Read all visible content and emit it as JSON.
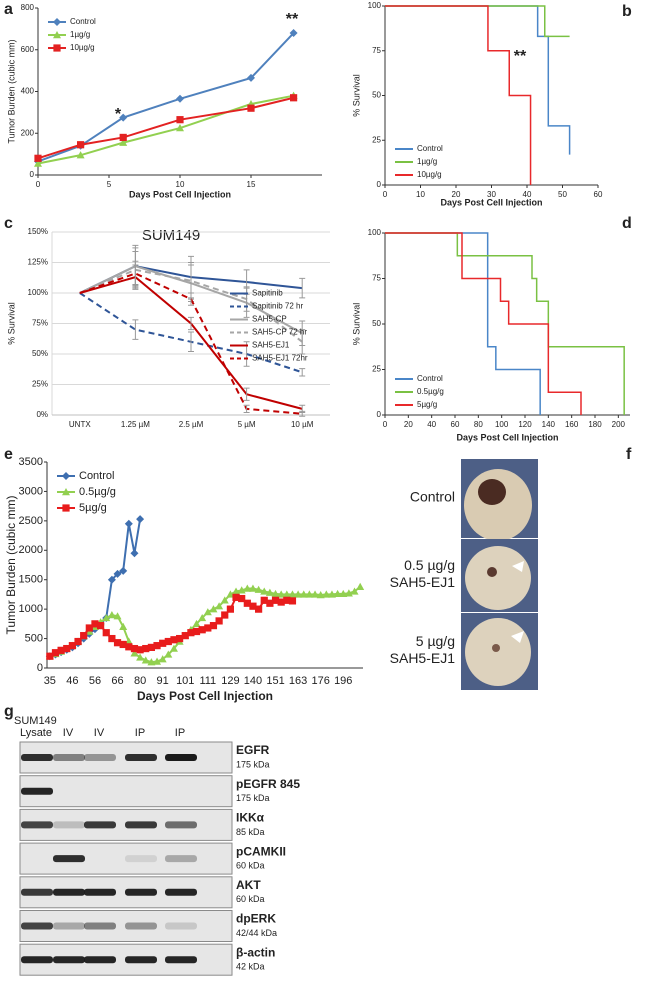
{
  "chart_data": [
    {
      "panel": "a",
      "type": "line",
      "xlabel": "Days Post Cell Injection",
      "ylabel": "Tumor Burden (cubic mm)",
      "x": [
        0,
        3,
        6,
        10,
        15,
        18
      ],
      "xlim": [
        0,
        20
      ],
      "xticks": [
        0,
        5,
        10,
        15
      ],
      "ylim": [
        0,
        800
      ],
      "yticks": [
        0,
        200,
        400,
        600,
        800
      ],
      "grid": false,
      "legend": "top-left",
      "series": [
        {
          "name": "Control",
          "color": "#4f81bd",
          "marker": "diamond",
          "values": [
            65,
            140,
            275,
            365,
            465,
            680
          ]
        },
        {
          "name": "1µg/g",
          "color": "#92d050",
          "marker": "triangle",
          "values": [
            55,
            95,
            155,
            225,
            340,
            380
          ]
        },
        {
          "name": "10µg/g",
          "color": "#e32222",
          "marker": "square",
          "values": [
            80,
            145,
            180,
            265,
            320,
            370
          ]
        }
      ],
      "annotations": [
        {
          "text": "*",
          "color": "#222"
        },
        {
          "text": "**",
          "color": "#222"
        }
      ]
    },
    {
      "panel": "b",
      "type": "step",
      "xlabel": "Days Post Cell Injection",
      "ylabel": "% Survival",
      "xlim": [
        0,
        60
      ],
      "xticks": [
        0,
        10,
        20,
        30,
        40,
        50,
        60
      ],
      "ylim": [
        0,
        100
      ],
      "yticks": [
        0,
        25,
        50,
        75,
        100
      ],
      "grid": false,
      "legend": "bottom-left",
      "series": [
        {
          "name": "Control",
          "color": "#4a86c8",
          "x": [
            0,
            43,
            46,
            52
          ],
          "values": [
            100,
            83,
            33,
            17
          ]
        },
        {
          "name": "1µg/g",
          "color": "#7ac143",
          "x": [
            0,
            45,
            52
          ],
          "values": [
            100,
            83,
            83
          ]
        },
        {
          "name": "10µg/g",
          "color": "#e8292b",
          "x": [
            0,
            29,
            35,
            41
          ],
          "values": [
            100,
            75,
            50,
            0
          ]
        }
      ],
      "annotations": [
        {
          "text": "**",
          "color": "#e8292b"
        }
      ]
    },
    {
      "panel": "c",
      "type": "line",
      "title": "SUM149",
      "ylabel": "% Survival",
      "categories": [
        "UNTX",
        "1.25 µM",
        "2.5 µM",
        "5 µM",
        "10 µM"
      ],
      "ylim": [
        0,
        150
      ],
      "yticks": [
        {
          "value": 0,
          "label": "0%"
        },
        {
          "value": 25,
          "label": "25%"
        },
        {
          "value": 50,
          "label": "50%"
        },
        {
          "value": 75,
          "label": "75%"
        },
        {
          "value": 100,
          "label": "100%"
        },
        {
          "value": 125,
          "label": "125%"
        },
        {
          "value": 150,
          "label": "150%"
        }
      ],
      "grid": true,
      "legend": "right",
      "series": [
        {
          "name": "Sapitinib",
          "color": "#2f5597",
          "dash": false,
          "values": [
            100,
            122,
            113,
            109,
            104
          ],
          "errors": [
            null,
            17,
            17,
            10,
            8
          ]
        },
        {
          "name": "Sapitinib 72 hr",
          "color": "#2f5597",
          "dash": true,
          "values": [
            100,
            70,
            60,
            50,
            35
          ],
          "errors": [
            null,
            8,
            8,
            10,
            3
          ]
        },
        {
          "name": "SAH5-CP",
          "color": "#a6a6a6",
          "dash": false,
          "values": [
            100,
            122,
            108,
            92,
            67
          ],
          "errors": [
            null,
            15,
            15,
            12,
            10
          ]
        },
        {
          "name": "SAH5-CP 72 hr",
          "color": "#a6a6a6",
          "dash": true,
          "values": [
            100,
            119,
            110,
            95,
            60
          ],
          "errors": [
            null,
            15,
            15,
            10,
            10
          ]
        },
        {
          "name": "SAH5-EJ1",
          "color": "#c00000",
          "dash": false,
          "values": [
            100,
            113,
            75,
            17,
            5
          ],
          "errors": [
            null,
            10,
            5,
            5,
            3
          ]
        },
        {
          "name": "SAH5-EJ1 72hr",
          "color": "#c00000",
          "dash": true,
          "values": [
            100,
            116,
            95,
            5,
            1
          ],
          "errors": [
            null,
            10,
            5,
            3,
            2
          ]
        }
      ]
    },
    {
      "panel": "d",
      "type": "step",
      "xlabel": "Days Post Cell Injection",
      "ylabel": "% Survival",
      "xlim": [
        0,
        210
      ],
      "xticks": [
        0,
        20,
        40,
        60,
        80,
        100,
        120,
        140,
        160,
        180,
        200
      ],
      "ylim": [
        0,
        100
      ],
      "yticks": [
        0,
        25,
        50,
        75,
        100
      ],
      "grid": false,
      "legend": "bottom-left",
      "series": [
        {
          "name": "Control",
          "color": "#4a86c8",
          "x": [
            0,
            88,
            95,
            133
          ],
          "values": [
            100,
            37.5,
            25,
            0
          ]
        },
        {
          "name": "0.5µg/g",
          "color": "#7ac143",
          "x": [
            0,
            62,
            126,
            130,
            140,
            205
          ],
          "values": [
            100,
            87.5,
            75,
            62.5,
            37.5,
            0
          ]
        },
        {
          "name": "5µg/g",
          "color": "#e8292b",
          "x": [
            0,
            66,
            99,
            106,
            140,
            168
          ],
          "values": [
            100,
            75,
            62.5,
            50,
            12.5,
            0
          ]
        }
      ]
    },
    {
      "panel": "e",
      "type": "line",
      "xlabel": "Days Post Cell Injection",
      "ylabel": "Tumor Burden (cubic mm)",
      "categories": [
        35,
        null,
        null,
        null,
        46,
        null,
        null,
        null,
        56,
        null,
        null,
        null,
        66,
        null,
        null,
        null,
        80,
        null,
        null,
        null,
        91,
        null,
        null,
        null,
        101,
        null,
        null,
        null,
        111,
        null,
        null,
        null,
        129,
        null,
        null,
        null,
        140,
        null,
        null,
        null,
        151,
        null,
        null,
        null,
        163,
        null,
        null,
        null,
        176,
        null,
        null,
        null,
        196,
        null,
        null,
        null
      ],
      "ylim": [
        0,
        3500
      ],
      "yticks": [
        0,
        500,
        1000,
        1500,
        2000,
        2500,
        3000,
        3500
      ],
      "grid": false,
      "legend": "top-left",
      "series": [
        {
          "name": "Control",
          "color": "#3e6fb0",
          "marker": "diamond",
          "values": [
            200,
            230,
            270,
            310,
            350,
            420,
            500,
            580,
            660,
            750,
            850,
            1500,
            1600,
            1650,
            2450,
            1950,
            2530,
            null,
            null,
            null,
            null,
            null,
            null,
            null,
            null,
            null,
            null,
            null,
            null,
            null,
            null,
            null,
            null,
            null,
            null,
            null,
            null,
            null,
            null,
            null,
            null,
            null,
            null,
            null,
            null,
            null,
            null,
            null,
            null,
            null,
            null,
            null,
            null,
            null,
            null,
            null
          ]
        },
        {
          "name": "0.5µg/g",
          "color": "#92d050",
          "marker": "triangle",
          "values": [
            200,
            240,
            280,
            330,
            380,
            450,
            540,
            620,
            700,
            780,
            850,
            900,
            880,
            700,
            450,
            250,
            180,
            130,
            100,
            110,
            150,
            230,
            330,
            450,
            550,
            650,
            750,
            850,
            950,
            1000,
            1050,
            1150,
            1250,
            1300,
            1320,
            1350,
            1350,
            1330,
            1300,
            1280,
            1260,
            1250,
            1250,
            1250,
            1250,
            1250,
            1250,
            1250,
            1240,
            1250,
            1250,
            1260,
            1260,
            1270,
            1300,
            1380
          ]
        },
        {
          "name": "5µg/g",
          "color": "#e81c1c",
          "marker": "square",
          "values": [
            200,
            260,
            300,
            330,
            380,
            450,
            550,
            680,
            750,
            720,
            600,
            500,
            430,
            400,
            360,
            330,
            310,
            330,
            350,
            380,
            420,
            450,
            480,
            500,
            550,
            600,
            620,
            650,
            680,
            720,
            800,
            900,
            1000,
            1200,
            1180,
            1100,
            1050,
            1000,
            1150,
            1100,
            1150,
            1120,
            1150,
            1140,
            null,
            null,
            null,
            null,
            null,
            null,
            null,
            null,
            null,
            null,
            null,
            null
          ]
        }
      ]
    }
  ],
  "figure_f": {
    "panel": "f",
    "photos": [
      {
        "lines": [
          "Control"
        ]
      },
      {
        "lines": [
          "0.5 µg/g",
          "SAH5-EJ1"
        ]
      },
      {
        "lines": [
          "5 µg/g",
          "SAH5-EJ1"
        ]
      }
    ]
  },
  "figure_g": {
    "panel": "g",
    "cell_line": "SUM149",
    "lanes": [
      "Lysate",
      "IV",
      "IV",
      "IP",
      "IP"
    ],
    "rows": [
      {
        "protein": "EGFR",
        "size": "175 kDa"
      },
      {
        "protein": "pEGFR 845",
        "size": "175 kDa"
      },
      {
        "protein": "IKKα",
        "size": "85 kDa"
      },
      {
        "protein": "pCAMKII",
        "size": "60 kDa"
      },
      {
        "protein": "AKT",
        "size": "60 kDa"
      },
      {
        "protein": "dpERK",
        "size": "42/44 kDa"
      },
      {
        "protein": "β-actin",
        "size": "42 kDa"
      }
    ]
  }
}
